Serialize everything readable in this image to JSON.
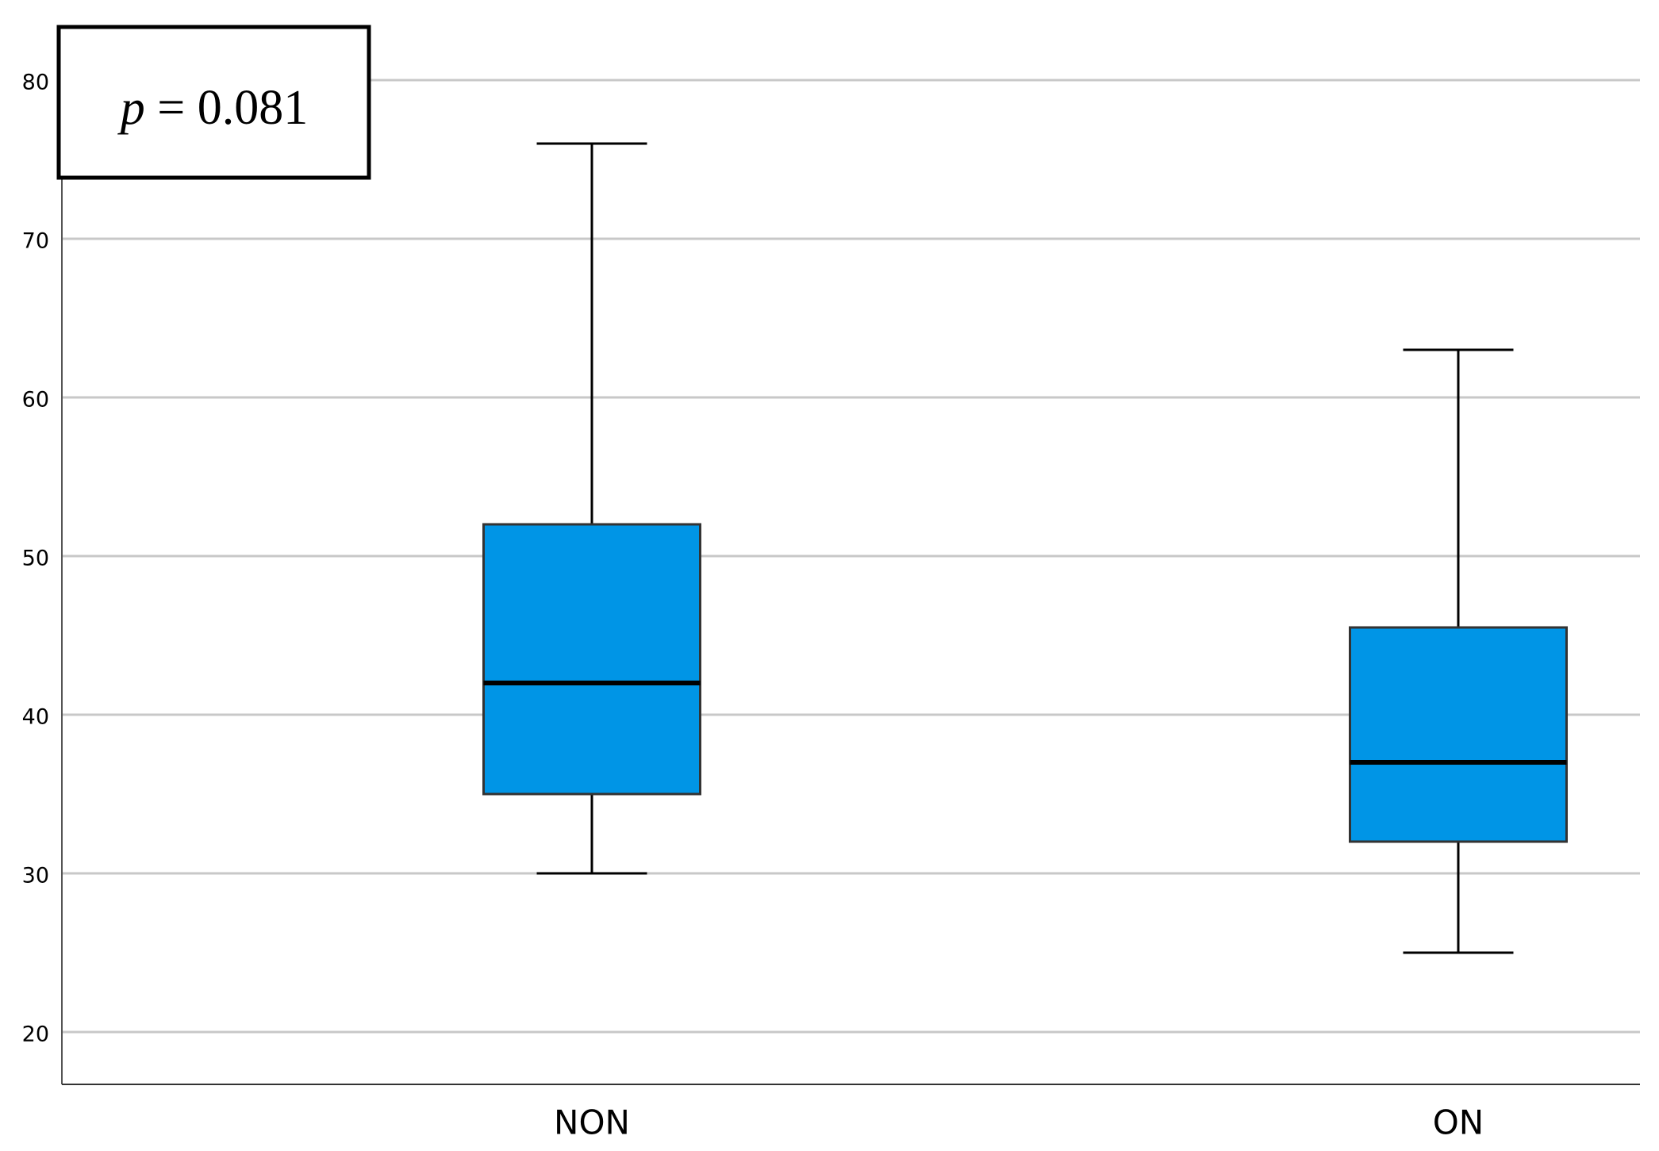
{
  "chart_data": {
    "type": "box",
    "categories": [
      "NON",
      "ON"
    ],
    "min": [
      30,
      25
    ],
    "q1": [
      35,
      32
    ],
    "median": [
      42,
      37
    ],
    "q3": [
      52,
      45.5
    ],
    "max": [
      76,
      63
    ],
    "color": "#0095e6",
    "ylim": [
      16.7,
      83.35
    ],
    "yticks": [
      20,
      30,
      40,
      50,
      60,
      70,
      80
    ],
    "grid": true,
    "annotation": {
      "symbol": "p",
      "text": "= 0.081"
    }
  }
}
